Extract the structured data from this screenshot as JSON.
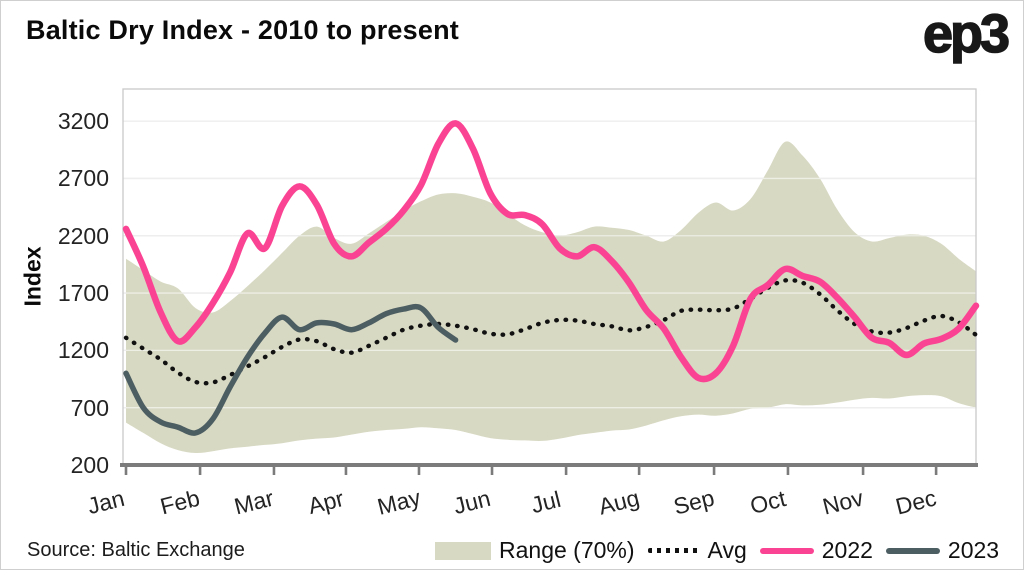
{
  "header": {
    "title": "Baltic Dry Index - 2010 to present",
    "logo": "ep3"
  },
  "footer": {
    "source": "Source: Baltic Exchange"
  },
  "colors": {
    "band": "#d8d9c3",
    "avg": "#111111",
    "y2022": "#fa4493",
    "y2023": "#4d5e62",
    "grid": "#d9d9d9",
    "grid_over_band": "rgba(255,255,255,0.55)",
    "axis": "#7b7b7b",
    "plot_border": "#c9c9c9"
  },
  "chart_data": {
    "type": "line",
    "title": "Baltic Dry Index - 2010 to present",
    "xlabel": "",
    "ylabel": "Index",
    "ylim": [
      200,
      3480
    ],
    "yticks": [
      200,
      700,
      1200,
      1700,
      2200,
      2700,
      3200
    ],
    "x_unit": "week-of-year",
    "x_range": [
      1,
      50
    ],
    "xtick_labels": [
      "Jan",
      "Feb",
      "Mar",
      "Apr",
      "May",
      "Jun",
      "Jul",
      "Aug",
      "Sep",
      "Oct",
      "Nov",
      "Dec"
    ],
    "xtick_weeks": [
      1,
      5.27,
      9.53,
      13.68,
      17.89,
      22.1,
      26.37,
      30.58,
      34.9,
      39.16,
      43.49,
      47.7
    ],
    "grid": true,
    "legend_position": "bottom",
    "legend": [
      {
        "label": "Range (70%)",
        "style": "band",
        "color": "#d8d9c3"
      },
      {
        "label": "Avg",
        "style": "dotted",
        "color": "#111111"
      },
      {
        "label": "2022",
        "style": "line",
        "color": "#fa4493"
      },
      {
        "label": "2023",
        "style": "line",
        "color": "#4d5e62"
      }
    ],
    "series": [
      {
        "name": "range_high_70pct",
        "start_week": 1,
        "values": [
          2000,
          1900,
          1800,
          1740,
          1570,
          1530,
          1630,
          1760,
          1900,
          2050,
          2200,
          2280,
          2180,
          2130,
          2220,
          2320,
          2420,
          2500,
          2560,
          2570,
          2540,
          2490,
          2390,
          2290,
          2230,
          2200,
          2230,
          2280,
          2270,
          2250,
          2200,
          2150,
          2250,
          2400,
          2490,
          2420,
          2520,
          2770,
          3020,
          2900,
          2700,
          2430,
          2230,
          2150,
          2180,
          2210,
          2200,
          2130,
          2000,
          1890
        ]
      },
      {
        "name": "range_low_70pct",
        "start_week": 1,
        "values": [
          570,
          480,
          390,
          330,
          305,
          320,
          345,
          360,
          375,
          390,
          415,
          430,
          440,
          465,
          490,
          505,
          515,
          530,
          520,
          505,
          470,
          435,
          420,
          415,
          410,
          430,
          460,
          480,
          500,
          510,
          545,
          590,
          625,
          640,
          630,
          650,
          690,
          700,
          730,
          720,
          725,
          745,
          770,
          785,
          780,
          800,
          810,
          800,
          740,
          700
        ]
      },
      {
        "name": "avg",
        "start_week": 1,
        "values": [
          1310,
          1215,
          1120,
          1005,
          925,
          920,
          985,
          1060,
          1140,
          1230,
          1295,
          1280,
          1210,
          1180,
          1240,
          1310,
          1380,
          1415,
          1430,
          1415,
          1385,
          1345,
          1340,
          1385,
          1440,
          1465,
          1460,
          1430,
          1410,
          1375,
          1405,
          1465,
          1545,
          1555,
          1550,
          1565,
          1650,
          1745,
          1810,
          1790,
          1690,
          1550,
          1430,
          1365,
          1355,
          1395,
          1460,
          1500,
          1445,
          1335
        ]
      },
      {
        "name": "2022",
        "start_week": 1,
        "values": [
          2260,
          1930,
          1530,
          1280,
          1400,
          1610,
          1880,
          2220,
          2090,
          2460,
          2630,
          2470,
          2130,
          2020,
          2140,
          2260,
          2420,
          2640,
          3000,
          3180,
          2960,
          2570,
          2390,
          2380,
          2300,
          2090,
          2020,
          2100,
          1980,
          1790,
          1550,
          1390,
          1140,
          960,
          1000,
          1240,
          1650,
          1770,
          1910,
          1850,
          1800,
          1660,
          1490,
          1310,
          1265,
          1160,
          1260,
          1300,
          1390,
          1590
        ]
      },
      {
        "name": "2023",
        "start_week": 1,
        "values": [
          1000,
          700,
          575,
          530,
          480,
          600,
          880,
          1140,
          1350,
          1490,
          1380,
          1440,
          1430,
          1380,
          1440,
          1520,
          1560,
          1570,
          1400,
          1290
        ]
      }
    ]
  }
}
